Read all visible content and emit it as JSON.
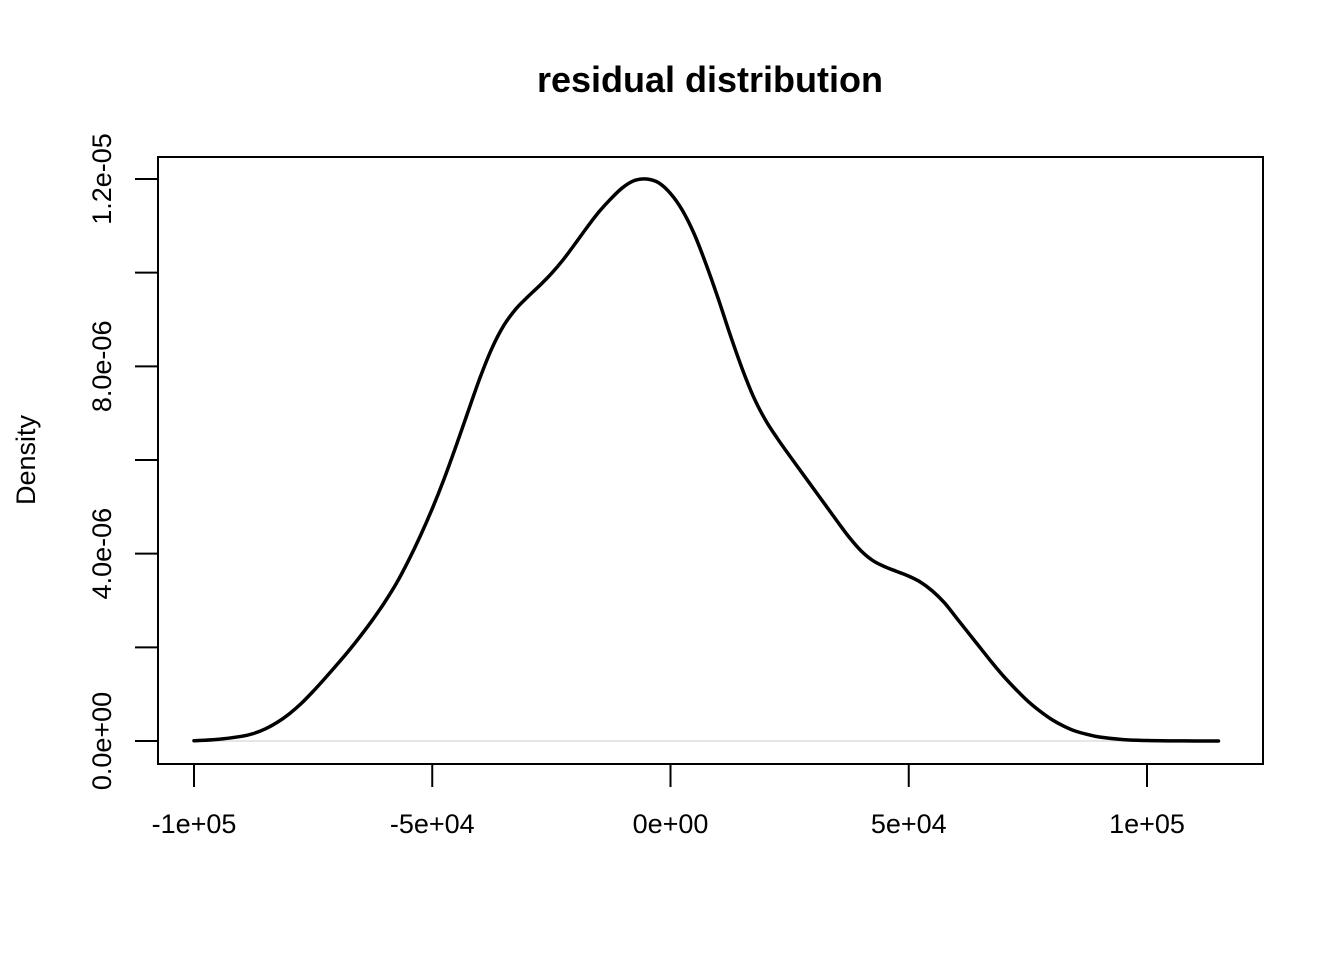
{
  "chart_data": {
    "type": "line",
    "title": "residual distribution",
    "xlabel": "",
    "ylabel": "Density",
    "xlim": [
      -100000,
      115000
    ],
    "ylim": [
      0,
      1.2e-05
    ],
    "x_ticks": [
      -100000,
      -50000,
      0,
      50000,
      100000
    ],
    "x_tick_labels": [
      "-1e+05",
      "-5e+04",
      "0e+00",
      "5e+04",
      "1e+05"
    ],
    "y_ticks": [
      0,
      2e-06,
      4e-06,
      6e-06,
      8e-06,
      1e-05,
      1.2e-05
    ],
    "y_tick_labels": [
      "0.0e+00",
      "",
      "4.0e-06",
      "",
      "8.0e-06",
      "",
      "1.2e-05"
    ],
    "baseline": 0,
    "grid": false,
    "colors": {
      "line": "#000000",
      "baseline": "#cccccc"
    },
    "series": [
      {
        "x": [
          -100000,
          -95000,
          -90000,
          -87500,
          -85000,
          -82500,
          -80000,
          -77500,
          -75000,
          -72500,
          -70000,
          -67500,
          -65000,
          -62500,
          -60000,
          -57500,
          -55000,
          -52500,
          -50000,
          -47500,
          -45000,
          -42500,
          -40000,
          -37500,
          -35000,
          -32500,
          -30000,
          -27500,
          -25000,
          -22500,
          -20000,
          -17500,
          -15000,
          -12500,
          -10000,
          -7500,
          -5000,
          -2500,
          0,
          2500,
          5000,
          7500,
          10000,
          12500,
          15000,
          17500,
          20000,
          22500,
          25000,
          27500,
          30000,
          32500,
          35000,
          37500,
          40000,
          42500,
          45000,
          47500,
          50000,
          52500,
          55000,
          57500,
          60000,
          62500,
          65000,
          67500,
          70000,
          72500,
          75000,
          77500,
          80000,
          82500,
          85000,
          87500,
          90000,
          95000,
          100000,
          105000,
          110000,
          115000
        ],
        "y": [
          5e-09,
          3.5e-08,
          1e-07,
          1.6e-07,
          2.6e-07,
          4e-07,
          5.8e-07,
          8e-07,
          1.06e-06,
          1.34e-06,
          1.63e-06,
          1.93e-06,
          2.25e-06,
          2.59e-06,
          2.96e-06,
          3.37e-06,
          3.85e-06,
          4.38e-06,
          4.96e-06,
          5.6e-06,
          6.3e-06,
          7.03e-06,
          7.75e-06,
          8.38e-06,
          8.87e-06,
          9.22e-06,
          9.48e-06,
          9.72e-06,
          9.98e-06,
          1.028e-05,
          1.062e-05,
          1.097e-05,
          1.13e-05,
          1.158e-05,
          1.182e-05,
          1.197e-05,
          1.2e-05,
          1.192e-05,
          1.169e-05,
          1.133e-05,
          1.082e-05,
          1.017e-05,
          9.45e-06,
          8.68e-06,
          7.96e-06,
          7.33e-06,
          6.84e-06,
          6.45e-06,
          6.09e-06,
          5.74e-06,
          5.39e-06,
          5.04e-06,
          4.69e-06,
          4.35e-06,
          4.06e-06,
          3.85e-06,
          3.72e-06,
          3.62e-06,
          3.52e-06,
          3.39e-06,
          3.2e-06,
          2.95e-06,
          2.63e-06,
          2.31e-06,
          1.99e-06,
          1.67e-06,
          1.37e-06,
          1.1e-06,
          8.5e-07,
          6.4e-07,
          4.6e-07,
          3.2e-07,
          2.1e-07,
          1.4e-07,
          8.5e-08,
          3e-08,
          1e-08,
          3e-09,
          1e-09,
          3e-10
        ]
      }
    ]
  }
}
